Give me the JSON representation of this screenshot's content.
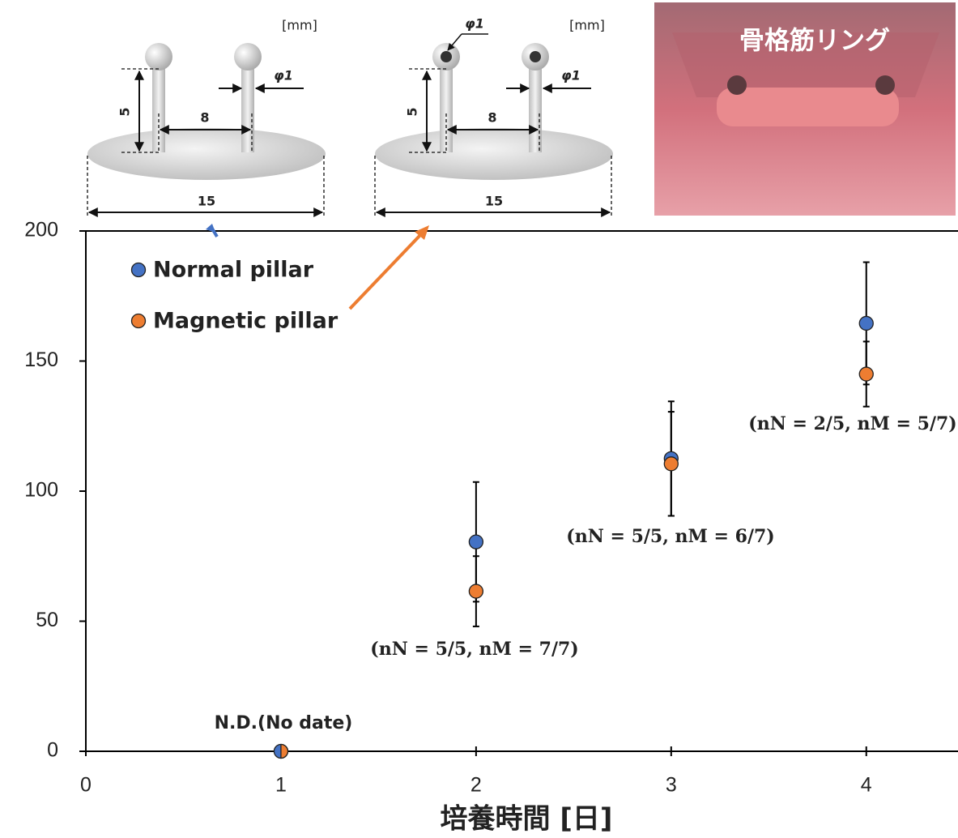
{
  "chart_data": {
    "type": "scatter",
    "x_label": "培養時間 [日]",
    "xlim": [
      0,
      4.47
    ],
    "xticks": [
      0,
      1,
      2,
      3,
      4
    ],
    "ylim": [
      0,
      200
    ],
    "yticks": [
      0,
      50,
      100,
      150,
      200
    ],
    "grid": false,
    "legend": "upper left",
    "series": [
      {
        "name": "Normal pillar",
        "color": "#4472c4",
        "x": [
          1,
          2,
          3,
          4
        ],
        "values": [
          0,
          80.5,
          112.5,
          164.5
        ],
        "errors": [
          0,
          23,
          22,
          23.5
        ]
      },
      {
        "name": "Magnetic pillar",
        "color": "#ed7d31",
        "x": [
          1,
          2,
          3,
          4
        ],
        "values": [
          0,
          61.5,
          110.5,
          145
        ],
        "errors": [
          0,
          13.5,
          20,
          12.5
        ]
      }
    ],
    "annotations": [
      "N.D.(No date)",
      "(nN = 5/5, nM = 7/7)",
      "(nN = 5/5, nM = 6/7)",
      "(nN = 2/5, nM = 5/7)"
    ]
  },
  "insets": {
    "left": {
      "unit": "[mm]",
      "diameter": "φ1",
      "height": "5",
      "gap": "8",
      "width": "15"
    },
    "right": {
      "unit": "[mm]",
      "diameter_top": "φ1",
      "diameter": "φ1",
      "height": "5",
      "gap": "8",
      "width": "15"
    },
    "photo_label": "骨格筋リング"
  }
}
